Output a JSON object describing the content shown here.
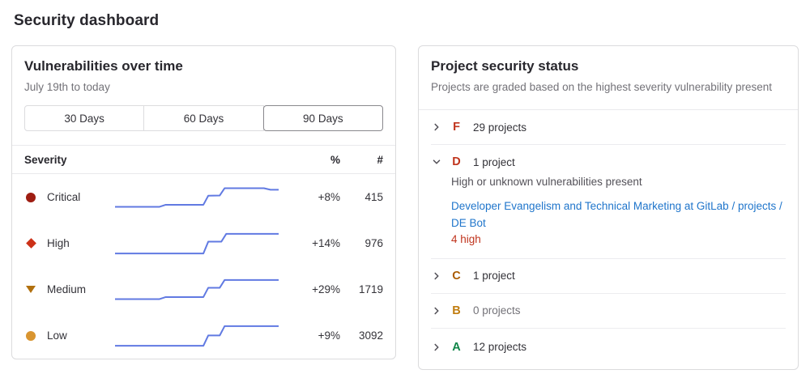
{
  "page": {
    "title": "Security dashboard"
  },
  "vuln_card": {
    "title": "Vulnerabilities over time",
    "subtitle": "July 19th to today",
    "range_buttons": [
      {
        "label": "30 Days",
        "selected": false
      },
      {
        "label": "60 Days",
        "selected": false
      },
      {
        "label": "90 Days",
        "selected": true
      }
    ],
    "table": {
      "headers": {
        "severity": "Severity",
        "percent": "%",
        "count": "#"
      },
      "spark_color": "#617ae2",
      "rows": [
        {
          "severity": "Critical",
          "icon": "severity-critical-icon",
          "shape": "circle",
          "color": "#9e1d12",
          "percent": "+8%",
          "count": "415",
          "spark": [
            [
              0,
              14
            ],
            [
              27,
              14
            ],
            [
              31,
              22
            ],
            [
              54,
              22
            ],
            [
              57,
              57
            ],
            [
              64,
              58
            ],
            [
              67,
              86
            ],
            [
              91,
              86
            ],
            [
              95,
              80
            ],
            [
              100,
              80
            ]
          ]
        },
        {
          "severity": "High",
          "icon": "severity-high-icon",
          "shape": "diamond",
          "color": "#cc3118",
          "percent": "+14%",
          "count": "976",
          "spark": [
            [
              0,
              12
            ],
            [
              54,
              12
            ],
            [
              57,
              58
            ],
            [
              65,
              58
            ],
            [
              68,
              88
            ],
            [
              100,
              88
            ]
          ]
        },
        {
          "severity": "Medium",
          "icon": "severity-medium-icon",
          "shape": "triangle",
          "color": "#b1700e",
          "percent": "+29%",
          "count": "1719",
          "spark": [
            [
              0,
              14
            ],
            [
              27,
              14
            ],
            [
              31,
              22
            ],
            [
              54,
              22
            ],
            [
              57,
              58
            ],
            [
              64,
              58
            ],
            [
              67,
              88
            ],
            [
              100,
              88
            ]
          ]
        },
        {
          "severity": "Low",
          "icon": "severity-low-icon",
          "shape": "circle",
          "color": "#d99530",
          "percent": "+9%",
          "count": "3092",
          "spark": [
            [
              0,
              12
            ],
            [
              54,
              12
            ],
            [
              57,
              52
            ],
            [
              64,
              52
            ],
            [
              67,
              88
            ],
            [
              100,
              88
            ]
          ]
        }
      ]
    }
  },
  "status_card": {
    "title": "Project security status",
    "subtitle": "Projects are graded based on the highest severity vulnerability present",
    "grades": [
      {
        "letter": "F",
        "color": "#c0341d",
        "count_label": "29 projects",
        "expanded": false,
        "muted": false
      },
      {
        "letter": "D",
        "color": "#c0341d",
        "count_label": "1 project",
        "expanded": true,
        "muted": false,
        "description": "High or unknown vulnerabilities present",
        "project_link": "Developer Evangelism and Technical Marketing at GitLab / projects / DE Bot",
        "vuln_summary": "4 high",
        "vuln_color": "#c0341d"
      },
      {
        "letter": "C",
        "color": "#aa5b00",
        "count_label": "1 project",
        "expanded": false,
        "muted": false
      },
      {
        "letter": "B",
        "color": "#c17d10",
        "count_label": "0 projects",
        "expanded": false,
        "muted": true
      },
      {
        "letter": "A",
        "color": "#108548",
        "count_label": "12 projects",
        "expanded": false,
        "muted": false
      }
    ],
    "chevron_color": "#535158"
  }
}
